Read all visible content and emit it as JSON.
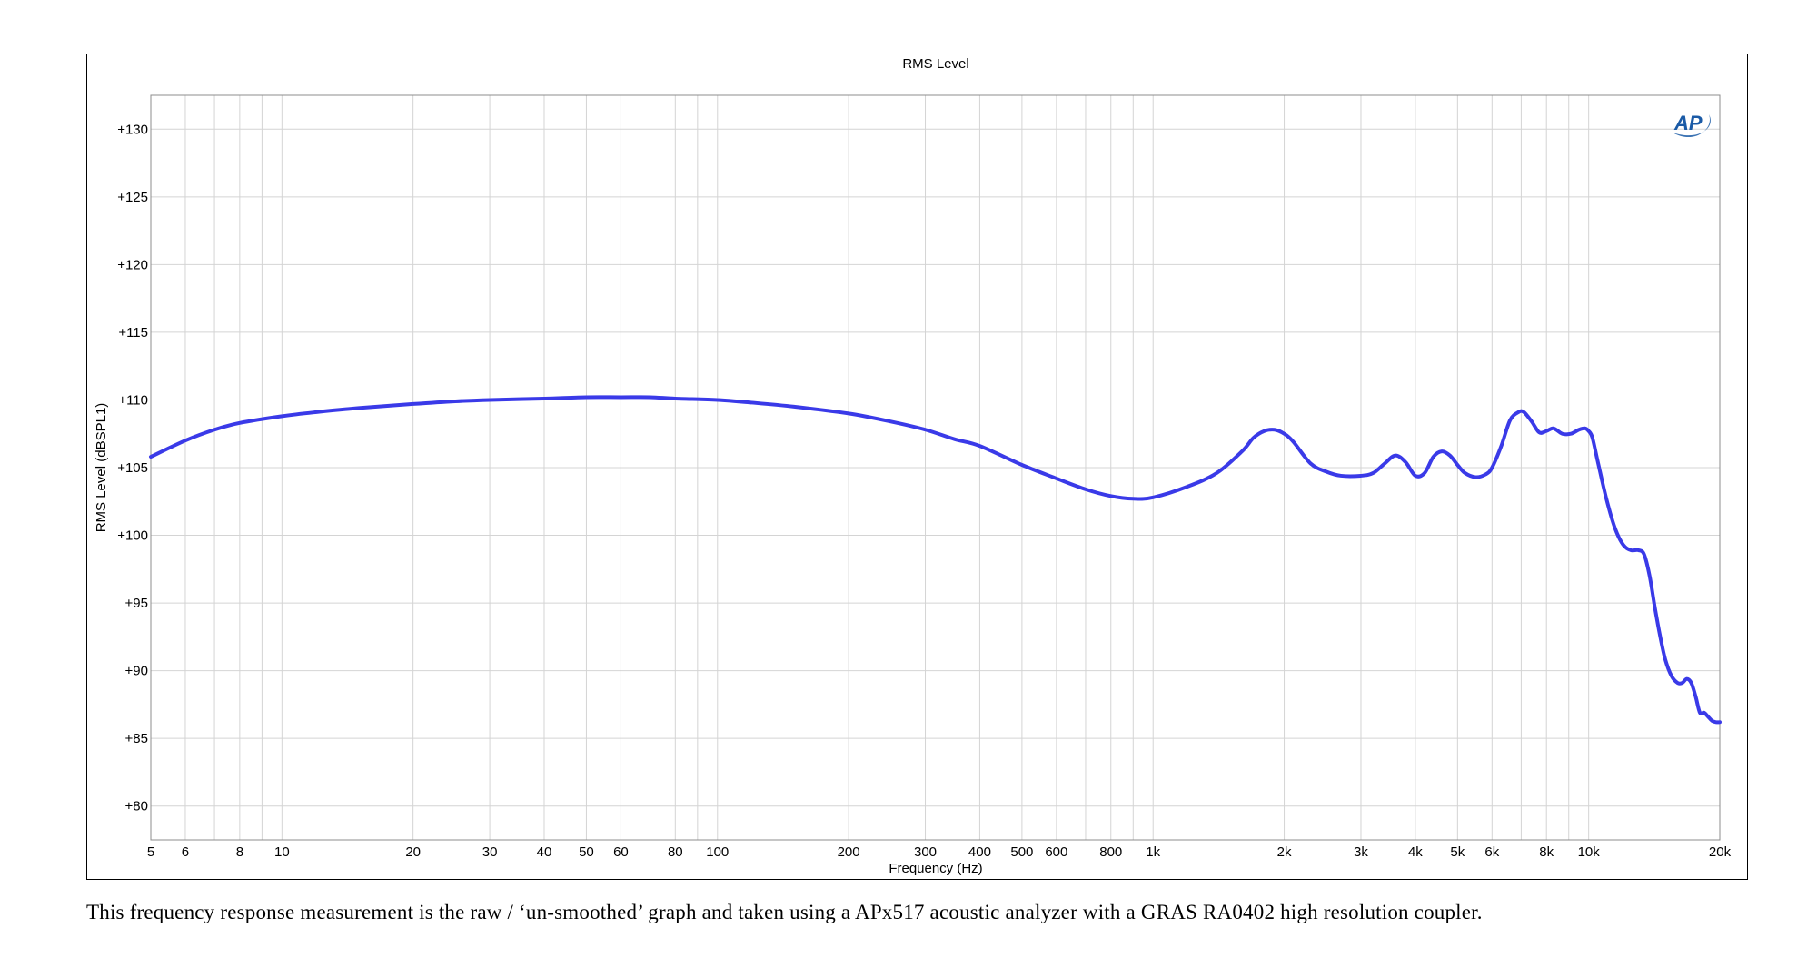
{
  "chart_data": {
    "type": "line",
    "title": "RMS Level",
    "xlabel": "Frequency (Hz)",
    "ylabel": "RMS Level (dBSPL1)",
    "xscale": "log",
    "xlim": [
      5,
      20000
    ],
    "ylim": [
      77.5,
      132.5
    ],
    "grid": true,
    "x_ticks": [
      {
        "value": 5,
        "label": "5"
      },
      {
        "value": 6,
        "label": "6"
      },
      {
        "value": 8,
        "label": "8"
      },
      {
        "value": 10,
        "label": "10"
      },
      {
        "value": 20,
        "label": "20"
      },
      {
        "value": 30,
        "label": "30"
      },
      {
        "value": 40,
        "label": "40"
      },
      {
        "value": 50,
        "label": "50"
      },
      {
        "value": 60,
        "label": "60"
      },
      {
        "value": 80,
        "label": "80"
      },
      {
        "value": 100,
        "label": "100"
      },
      {
        "value": 200,
        "label": "200"
      },
      {
        "value": 300,
        "label": "300"
      },
      {
        "value": 400,
        "label": "400"
      },
      {
        "value": 500,
        "label": "500"
      },
      {
        "value": 600,
        "label": "600"
      },
      {
        "value": 800,
        "label": "800"
      },
      {
        "value": 1000,
        "label": "1k"
      },
      {
        "value": 2000,
        "label": "2k"
      },
      {
        "value": 3000,
        "label": "3k"
      },
      {
        "value": 4000,
        "label": "4k"
      },
      {
        "value": 5000,
        "label": "5k"
      },
      {
        "value": 6000,
        "label": "6k"
      },
      {
        "value": 8000,
        "label": "8k"
      },
      {
        "value": 10000,
        "label": "10k"
      },
      {
        "value": 20000,
        "label": "20k"
      }
    ],
    "x_minor_grid": [
      7,
      9,
      70,
      90,
      700,
      900,
      7000,
      9000
    ],
    "y_ticks": [
      {
        "value": 80,
        "label": "+80"
      },
      {
        "value": 85,
        "label": "+85"
      },
      {
        "value": 90,
        "label": "+90"
      },
      {
        "value": 95,
        "label": "+95"
      },
      {
        "value": 100,
        "label": "+100"
      },
      {
        "value": 105,
        "label": "+105"
      },
      {
        "value": 110,
        "label": "+110"
      },
      {
        "value": 115,
        "label": "+115"
      },
      {
        "value": 120,
        "label": "+120"
      },
      {
        "value": 125,
        "label": "+125"
      },
      {
        "value": 130,
        "label": "+130"
      }
    ],
    "series": [
      {
        "color": "#3a3ae8",
        "x": [
          5,
          6,
          7,
          8,
          10,
          12,
          15,
          20,
          25,
          30,
          40,
          50,
          60,
          70,
          80,
          100,
          120,
          150,
          200,
          250,
          300,
          350,
          400,
          500,
          600,
          700,
          800,
          900,
          1000,
          1200,
          1400,
          1600,
          1700,
          1800,
          1900,
          2000,
          2100,
          2300,
          2500,
          2700,
          3000,
          3200,
          3400,
          3600,
          3800,
          4000,
          4200,
          4400,
          4600,
          4800,
          5000,
          5200,
          5500,
          5800,
          6000,
          6300,
          6600,
          6900,
          7100,
          7400,
          7700,
          8000,
          8300,
          8700,
          9100,
          9500,
          9800,
          10000,
          10200,
          10500,
          11000,
          11500,
          12000,
          12500,
          13000,
          13400,
          13800,
          14200,
          14600,
          15000,
          15500,
          16000,
          16400,
          16800,
          17200,
          17600,
          18000,
          18400,
          18800,
          19200,
          19600,
          20000
        ],
        "y": [
          105.8,
          107.0,
          107.8,
          108.3,
          108.8,
          109.1,
          109.4,
          109.7,
          109.9,
          110.0,
          110.1,
          110.2,
          110.2,
          110.2,
          110.1,
          110.0,
          109.8,
          109.5,
          109.0,
          108.4,
          107.8,
          107.1,
          106.6,
          105.2,
          104.2,
          103.4,
          102.9,
          102.7,
          102.8,
          103.6,
          104.6,
          106.2,
          107.2,
          107.7,
          107.8,
          107.5,
          106.9,
          105.3,
          104.7,
          104.4,
          104.4,
          104.6,
          105.3,
          105.9,
          105.4,
          104.4,
          104.6,
          105.8,
          106.2,
          105.9,
          105.2,
          104.6,
          104.3,
          104.5,
          105.0,
          106.6,
          108.5,
          109.1,
          109.1,
          108.4,
          107.6,
          107.7,
          107.9,
          107.5,
          107.5,
          107.8,
          107.9,
          107.7,
          107.2,
          105.4,
          102.6,
          100.5,
          99.3,
          98.9,
          98.9,
          98.6,
          97.0,
          94.6,
          92.5,
          90.8,
          89.6,
          89.1,
          89.1,
          89.4,
          89.1,
          88.1,
          86.9,
          86.9,
          86.6,
          86.3,
          86.2,
          86.2
        ]
      }
    ]
  },
  "logo": {
    "text": "AP",
    "color": "#1a5aa6"
  },
  "caption": "This frequency response measurement is the raw / ‘un-smoothed’ graph and taken using a APx517 acoustic analyzer with a GRAS RA0402 high resolution coupler."
}
